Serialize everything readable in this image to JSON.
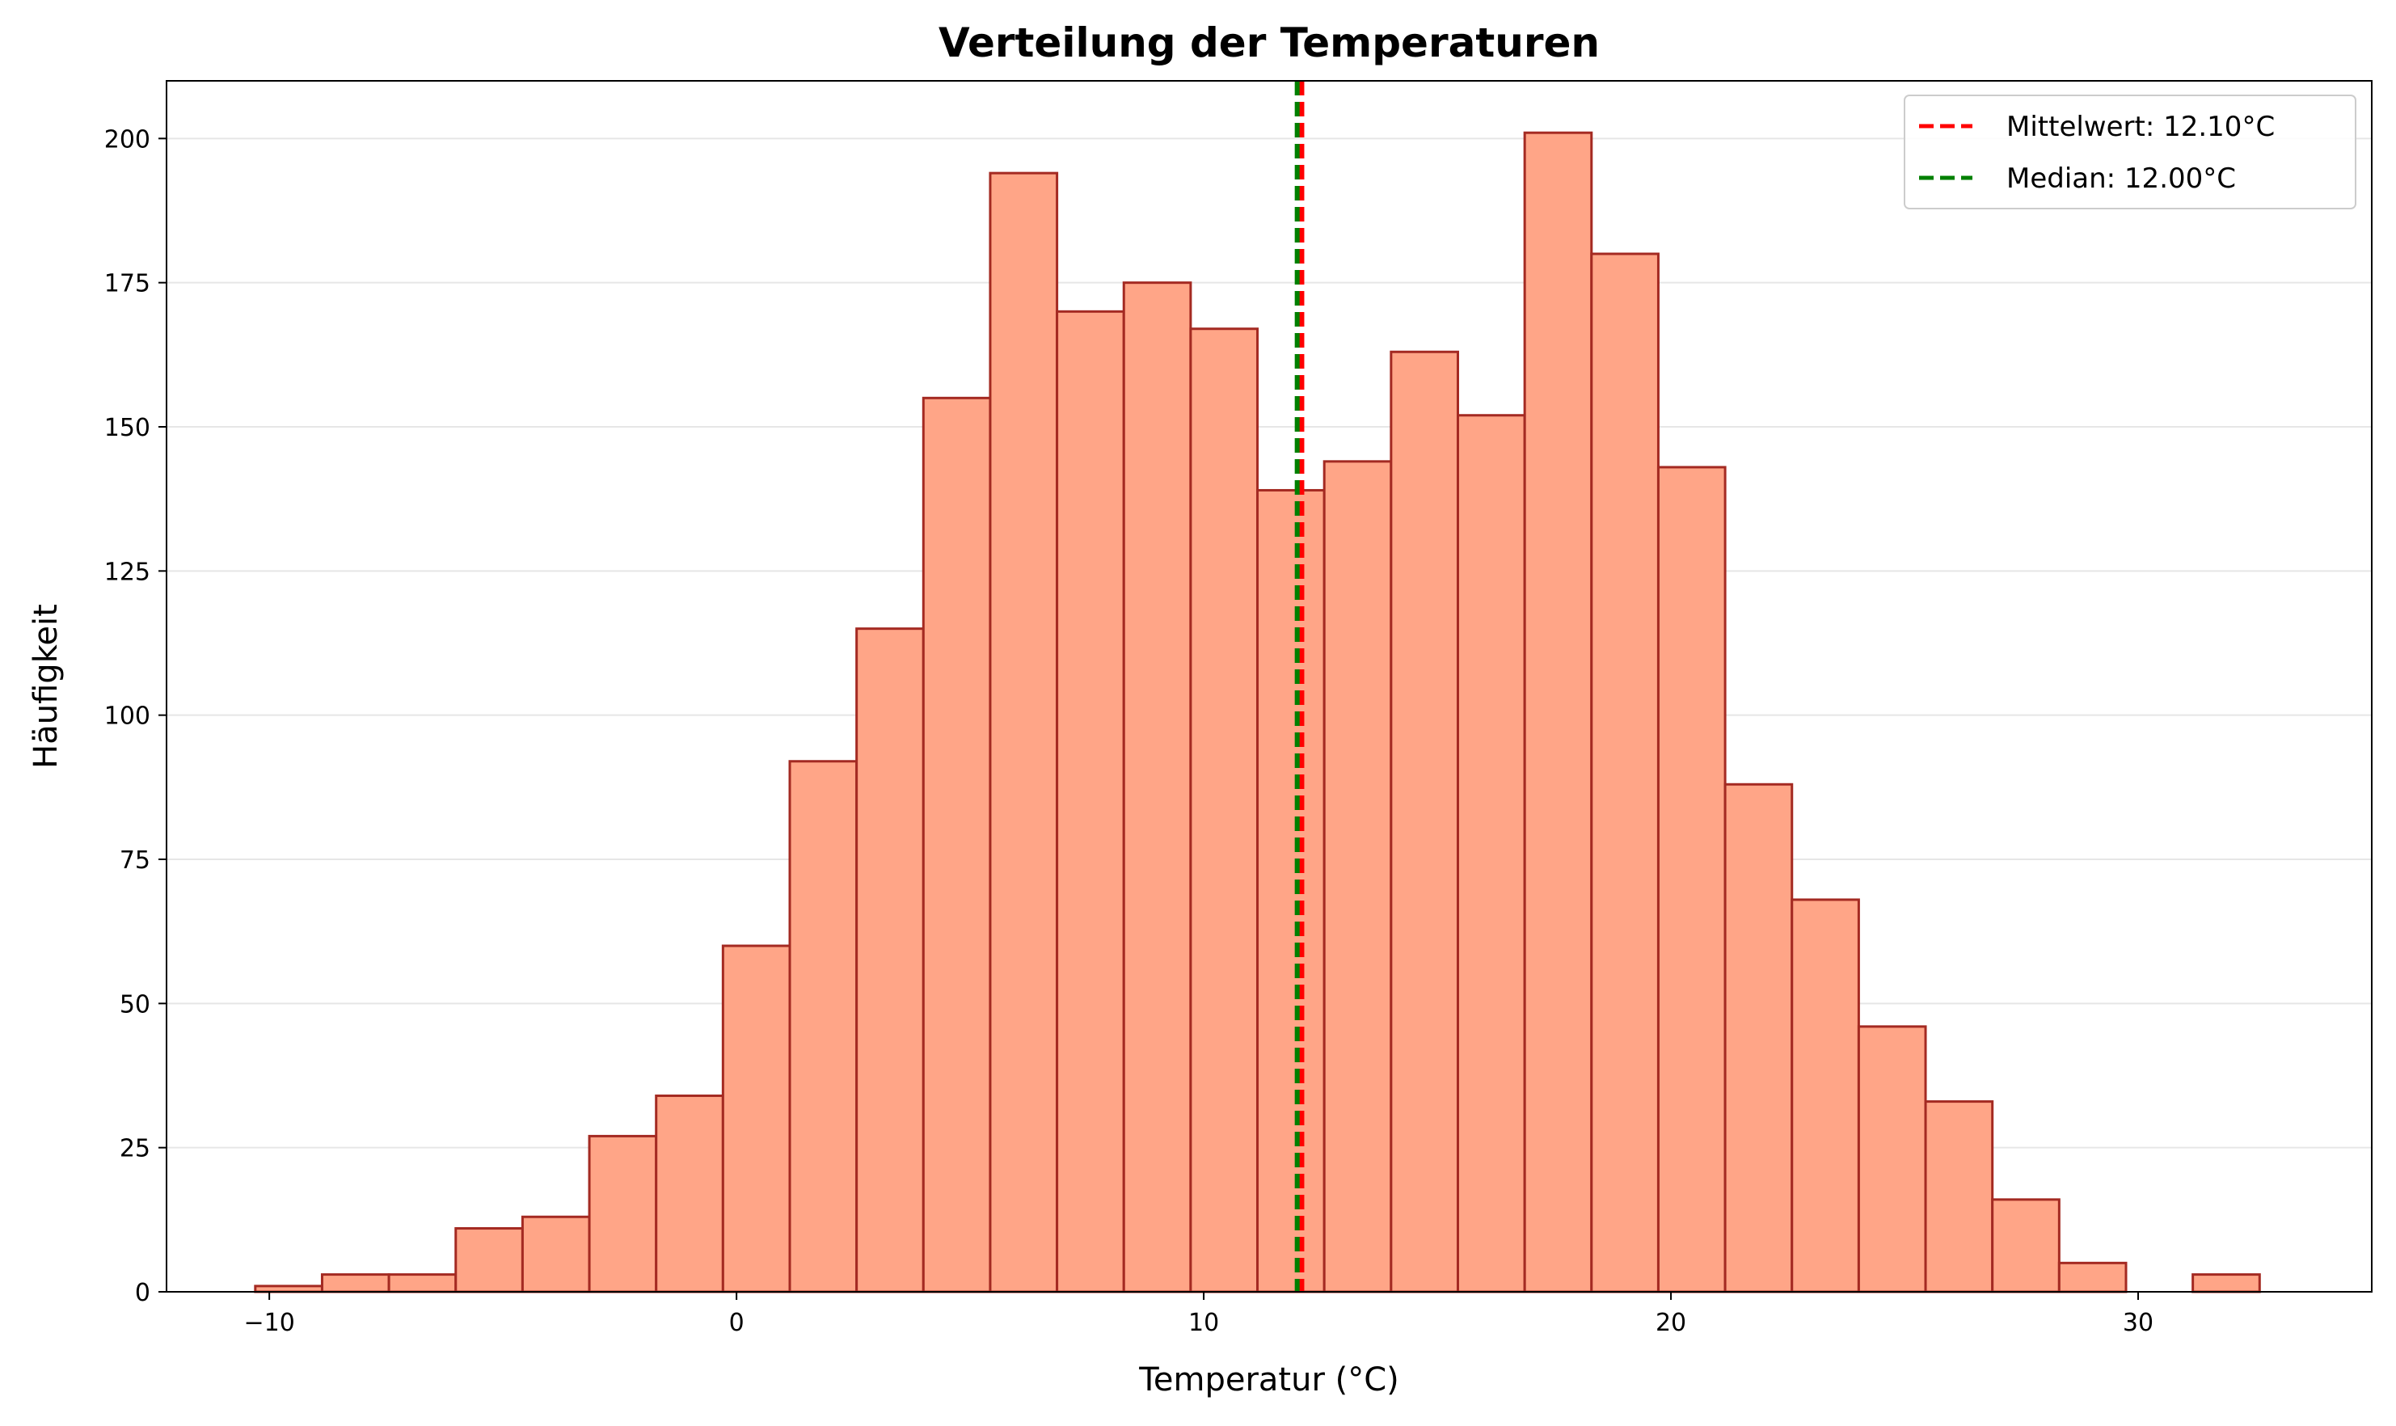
{
  "chart_data": {
    "type": "bar",
    "title": "Verteilung der Temperaturen",
    "xlabel": "Temperatur (°C)",
    "ylabel": "Häufigkeit",
    "xlim": [
      -12.2,
      35.0
    ],
    "ylim": [
      0,
      210
    ],
    "xticks": [
      -10,
      0,
      10,
      20,
      30
    ],
    "yticks": [
      0,
      25,
      50,
      75,
      100,
      125,
      150,
      175,
      200
    ],
    "xtick_labels": [
      "−10",
      "0",
      "10",
      "20",
      "30"
    ],
    "ytick_labels": [
      "0",
      "25",
      "50",
      "75",
      "100",
      "125",
      "150",
      "175",
      "200"
    ],
    "grid": "horizontal",
    "bin_start": -10.3,
    "bin_width": 1.43,
    "values": [
      1,
      3,
      3,
      11,
      13,
      27,
      34,
      60,
      92,
      115,
      155,
      194,
      170,
      175,
      167,
      139,
      144,
      163,
      152,
      201,
      180,
      143,
      88,
      68,
      46,
      33,
      16,
      5,
      0,
      3
    ],
    "bar_fill": "#ffa587",
    "bar_edge": "#a42a22",
    "reference_lines": [
      {
        "label": "Mittelwert: 12.10°C",
        "x": 12.1,
        "color": "#ff0000"
      },
      {
        "label": "Median: 12.00°C",
        "x": 12.0,
        "color": "#008000"
      }
    ],
    "legend_position": "top-right"
  }
}
